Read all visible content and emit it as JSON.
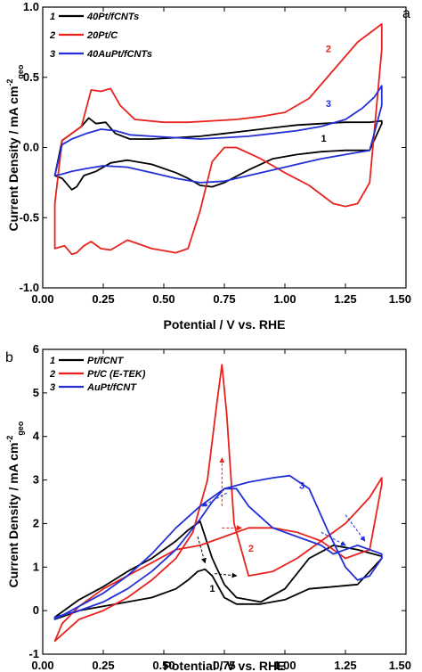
{
  "chart_data": [
    {
      "type": "line",
      "panel_label": "a",
      "xlabel": "Potential / V vs. RHE",
      "ylabel_main": "Current Density / mA cm",
      "ylabel_sup": "-2",
      "ylabel_sub": "geo",
      "xlim": [
        0.0,
        1.5
      ],
      "ylim": [
        -1.0,
        1.0
      ],
      "xticks": [
        "0.00",
        "0.25",
        "0.50",
        "0.75",
        "1.00",
        "1.25",
        "1.50"
      ],
      "yticks": [
        "-1.0",
        "-0.5",
        "0.0",
        "0.5",
        "1.0"
      ],
      "legend_position": "top-left",
      "series": [
        {
          "name": "40Pt/fCNTs",
          "number": "1",
          "color": "#000000",
          "x": [
            0.05,
            0.08,
            0.12,
            0.16,
            0.19,
            0.22,
            0.26,
            0.3,
            0.36,
            0.45,
            0.55,
            0.65,
            0.75,
            0.85,
            0.95,
            1.05,
            1.15,
            1.25,
            1.35,
            1.4,
            1.4,
            1.35,
            1.25,
            1.15,
            1.05,
            0.95,
            0.85,
            0.75,
            0.7,
            0.65,
            0.6,
            0.55,
            0.45,
            0.35,
            0.28,
            0.22,
            0.17,
            0.14,
            0.12,
            0.08,
            0.05
          ],
          "y": [
            -0.2,
            0.05,
            0.1,
            0.15,
            0.21,
            0.17,
            0.18,
            0.1,
            0.06,
            0.06,
            0.07,
            0.08,
            0.1,
            0.12,
            0.14,
            0.16,
            0.17,
            0.18,
            0.18,
            0.19,
            0.17,
            -0.02,
            -0.02,
            -0.03,
            -0.05,
            -0.08,
            -0.16,
            -0.25,
            -0.28,
            -0.27,
            -0.22,
            -0.18,
            -0.12,
            -0.09,
            -0.11,
            -0.17,
            -0.2,
            -0.28,
            -0.3,
            -0.22,
            -0.2
          ]
        },
        {
          "name": "20Pt/C",
          "number": "2",
          "color": "#e8231e",
          "x": [
            0.05,
            0.08,
            0.12,
            0.16,
            0.2,
            0.24,
            0.28,
            0.32,
            0.38,
            0.5,
            0.6,
            0.7,
            0.8,
            0.9,
            1.0,
            1.1,
            1.2,
            1.3,
            1.4,
            1.4,
            1.35,
            1.3,
            1.25,
            1.2,
            1.1,
            1.0,
            0.9,
            0.8,
            0.75,
            0.7,
            0.65,
            0.6,
            0.55,
            0.45,
            0.35,
            0.28,
            0.24,
            0.2,
            0.17,
            0.14,
            0.12,
            0.09,
            0.05
          ],
          "y": [
            -0.4,
            0.05,
            0.1,
            0.15,
            0.41,
            0.4,
            0.42,
            0.3,
            0.2,
            0.18,
            0.18,
            0.19,
            0.2,
            0.22,
            0.25,
            0.35,
            0.55,
            0.75,
            0.88,
            0.7,
            -0.25,
            -0.4,
            -0.42,
            -0.4,
            -0.27,
            -0.18,
            -0.08,
            0.0,
            0.0,
            -0.1,
            -0.45,
            -0.72,
            -0.75,
            -0.72,
            -0.66,
            -0.73,
            -0.72,
            -0.67,
            -0.7,
            -0.75,
            -0.76,
            -0.7,
            -0.72
          ]
        },
        {
          "name": "40AuPt/fCNTs",
          "number": "3",
          "color": "#2230d6",
          "x": [
            0.05,
            0.08,
            0.12,
            0.18,
            0.24,
            0.3,
            0.36,
            0.45,
            0.55,
            0.65,
            0.75,
            0.85,
            0.95,
            1.05,
            1.15,
            1.25,
            1.32,
            1.37,
            1.4,
            1.4,
            1.35,
            1.25,
            1.15,
            1.05,
            0.95,
            0.85,
            0.75,
            0.65,
            0.55,
            0.45,
            0.35,
            0.25,
            0.18,
            0.12,
            0.08,
            0.05
          ],
          "y": [
            -0.2,
            0.02,
            0.06,
            0.1,
            0.13,
            0.12,
            0.09,
            0.08,
            0.07,
            0.06,
            0.07,
            0.08,
            0.1,
            0.12,
            0.15,
            0.2,
            0.28,
            0.36,
            0.44,
            0.3,
            -0.02,
            -0.05,
            -0.08,
            -0.12,
            -0.16,
            -0.2,
            -0.24,
            -0.25,
            -0.22,
            -0.18,
            -0.14,
            -0.13,
            -0.15,
            -0.17,
            -0.19,
            -0.2
          ]
        }
      ],
      "annotations": [
        {
          "text": "1",
          "x": 1.16,
          "y": 0.04,
          "color": "#000000"
        },
        {
          "text": "2",
          "x": 1.18,
          "y": 0.68,
          "color": "#e8231e"
        },
        {
          "text": "3",
          "x": 1.18,
          "y": 0.29,
          "color": "#2230d6"
        }
      ]
    },
    {
      "type": "line",
      "panel_label": "b",
      "xlabel": "Potential / V vs. RHE",
      "ylabel_main": "Current Density / mA cm",
      "ylabel_sup": "-2",
      "ylabel_sub": "geo",
      "xlim": [
        0.0,
        1.5
      ],
      "ylim": [
        -1,
        6
      ],
      "xticks": [
        "0.00",
        "0.25",
        "0.50",
        "0.75",
        "1.00",
        "1.25",
        "1.50"
      ],
      "yticks": [
        "-1",
        "0",
        "1",
        "2",
        "3",
        "4",
        "5",
        "6"
      ],
      "legend_position": "top-left",
      "series": [
        {
          "name": "Pt/fCNT",
          "number": "1",
          "color": "#000000",
          "x": [
            0.05,
            0.15,
            0.25,
            0.35,
            0.45,
            0.55,
            0.6,
            0.64,
            0.67,
            0.7,
            0.75,
            0.8,
            0.9,
            1.0,
            1.1,
            1.2,
            1.3,
            1.4,
            1.4,
            1.3,
            1.2,
            1.1,
            1.0,
            0.9,
            0.8,
            0.75,
            0.7,
            0.65,
            0.6,
            0.55,
            0.45,
            0.35,
            0.25,
            0.15,
            0.05
          ],
          "y": [
            -0.2,
            0.0,
            0.1,
            0.2,
            0.3,
            0.5,
            0.7,
            0.9,
            0.95,
            0.8,
            0.3,
            0.15,
            0.15,
            0.25,
            0.5,
            0.55,
            0.6,
            1.2,
            1.25,
            1.4,
            1.5,
            1.2,
            0.5,
            0.2,
            0.3,
            0.6,
            1.2,
            2.05,
            1.85,
            1.6,
            1.2,
            0.9,
            0.55,
            0.25,
            -0.15
          ]
        },
        {
          "name": "Pt/C (E-TEK)",
          "number": "2",
          "color": "#e8231e",
          "x": [
            0.05,
            0.15,
            0.25,
            0.35,
            0.45,
            0.55,
            0.62,
            0.68,
            0.72,
            0.74,
            0.76,
            0.79,
            0.85,
            0.95,
            1.05,
            1.15,
            1.25,
            1.35,
            1.4,
            1.4,
            1.35,
            1.25,
            1.15,
            1.05,
            0.95,
            0.85,
            0.75,
            0.65,
            0.55,
            0.45,
            0.35,
            0.25,
            0.15,
            0.08,
            0.05
          ],
          "y": [
            -0.7,
            -0.2,
            0.0,
            0.3,
            0.7,
            1.2,
            1.8,
            3.0,
            4.8,
            5.65,
            4.5,
            2.0,
            0.8,
            0.9,
            1.2,
            1.6,
            2.0,
            2.6,
            3.05,
            2.9,
            1.4,
            1.2,
            1.6,
            1.8,
            1.9,
            1.9,
            1.7,
            1.5,
            1.4,
            1.1,
            0.8,
            0.5,
            0.1,
            -0.3,
            -0.7
          ]
        },
        {
          "name": "AuPt/fCNT",
          "number": "3",
          "color": "#2230d6",
          "x": [
            0.05,
            0.15,
            0.25,
            0.35,
            0.45,
            0.55,
            0.65,
            0.75,
            0.85,
            0.95,
            1.02,
            1.1,
            1.18,
            1.25,
            1.3,
            1.35,
            1.4,
            1.4,
            1.35,
            1.3,
            1.25,
            1.2,
            1.15,
            1.05,
            0.95,
            0.85,
            0.8,
            0.75,
            0.7,
            0.65,
            0.55,
            0.45,
            0.35,
            0.25,
            0.15,
            0.05
          ],
          "y": [
            -0.2,
            0.1,
            0.4,
            0.8,
            1.3,
            1.9,
            2.4,
            2.8,
            2.95,
            3.05,
            3.1,
            2.8,
            1.8,
            1.0,
            0.7,
            0.8,
            1.2,
            1.3,
            1.4,
            1.5,
            1.4,
            1.3,
            1.5,
            1.7,
            1.9,
            2.4,
            2.8,
            2.8,
            2.5,
            2.1,
            1.4,
            0.9,
            0.5,
            0.2,
            0.0,
            -0.15
          ]
        }
      ],
      "annotations": [
        {
          "text": "1",
          "x": 0.7,
          "y": 0.43,
          "color": "#000000"
        },
        {
          "text": "2",
          "x": 0.86,
          "y": 1.35,
          "color": "#e8231e"
        },
        {
          "text": "3",
          "x": 1.07,
          "y": 2.8,
          "color": "#2230d6"
        }
      ]
    }
  ]
}
